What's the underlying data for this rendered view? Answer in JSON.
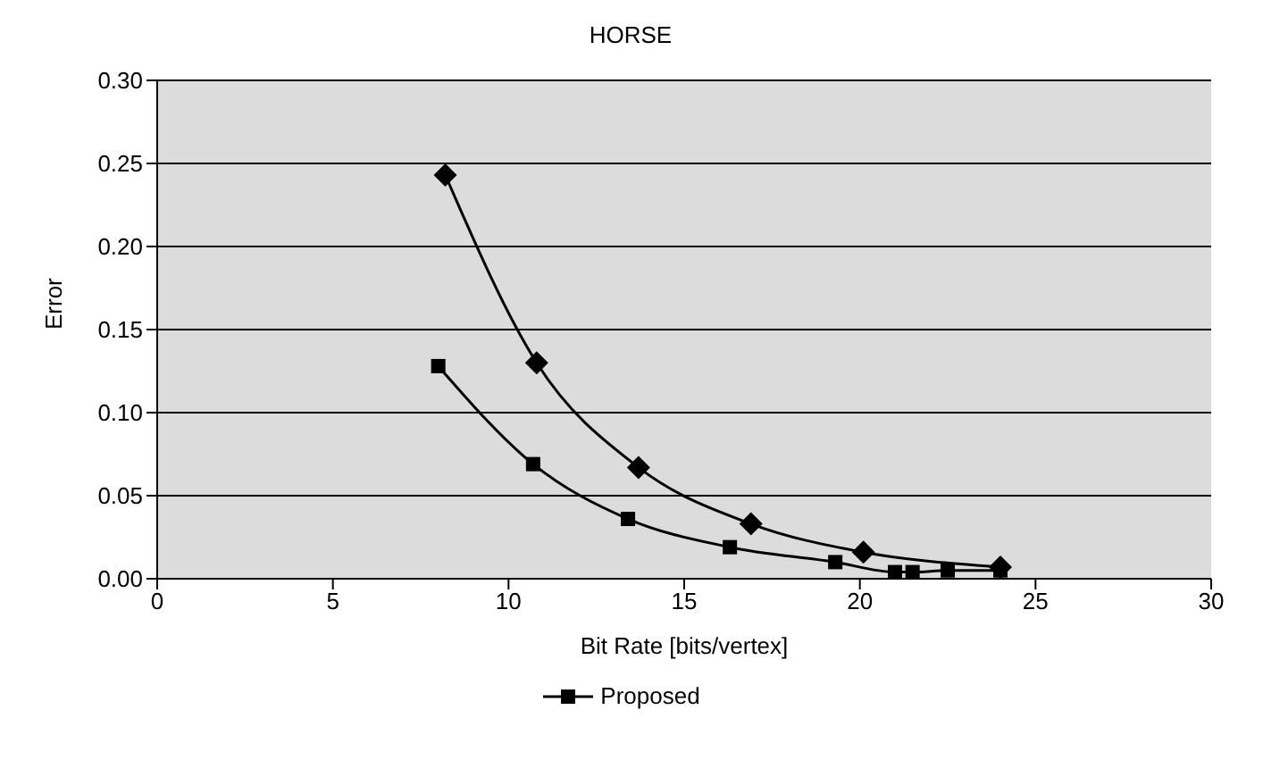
{
  "chart_data": {
    "type": "line",
    "title": "HORSE",
    "xlabel": "Bit Rate [bits/vertex]",
    "ylabel": "Error",
    "xlim": [
      0,
      30
    ],
    "xticks": [
      0,
      5,
      10,
      15,
      20,
      25,
      30
    ],
    "ylim": [
      0,
      0.3
    ],
    "yticks": [
      {
        "value": 0,
        "label": "0.00"
      },
      {
        "value": 0.05,
        "label": "0.05"
      },
      {
        "value": 0.1,
        "label": "0.10"
      },
      {
        "value": 0.15,
        "label": "0.15"
      },
      {
        "value": 0.2,
        "label": "0.20"
      },
      {
        "value": 0.25,
        "label": "0.25"
      },
      {
        "value": 0.3,
        "label": "0.30"
      }
    ],
    "grid": "y",
    "legend": "bottom",
    "series": [
      {
        "color": "#000000",
        "marker": "diamond",
        "x": [
          8.2,
          10.8,
          13.7,
          16.9,
          20.1,
          24.0
        ],
        "values": [
          0.243,
          0.13,
          0.067,
          0.033,
          0.016,
          0.007
        ]
      },
      {
        "name": "Proposed",
        "color": "#000000",
        "marker": "square",
        "x": [
          8.0,
          10.7,
          13.4,
          16.3,
          19.3,
          21.0,
          21.5,
          22.5,
          24.0
        ],
        "values": [
          0.128,
          0.069,
          0.036,
          0.019,
          0.01,
          0.004,
          0.004,
          0.005,
          0.005
        ]
      }
    ]
  }
}
